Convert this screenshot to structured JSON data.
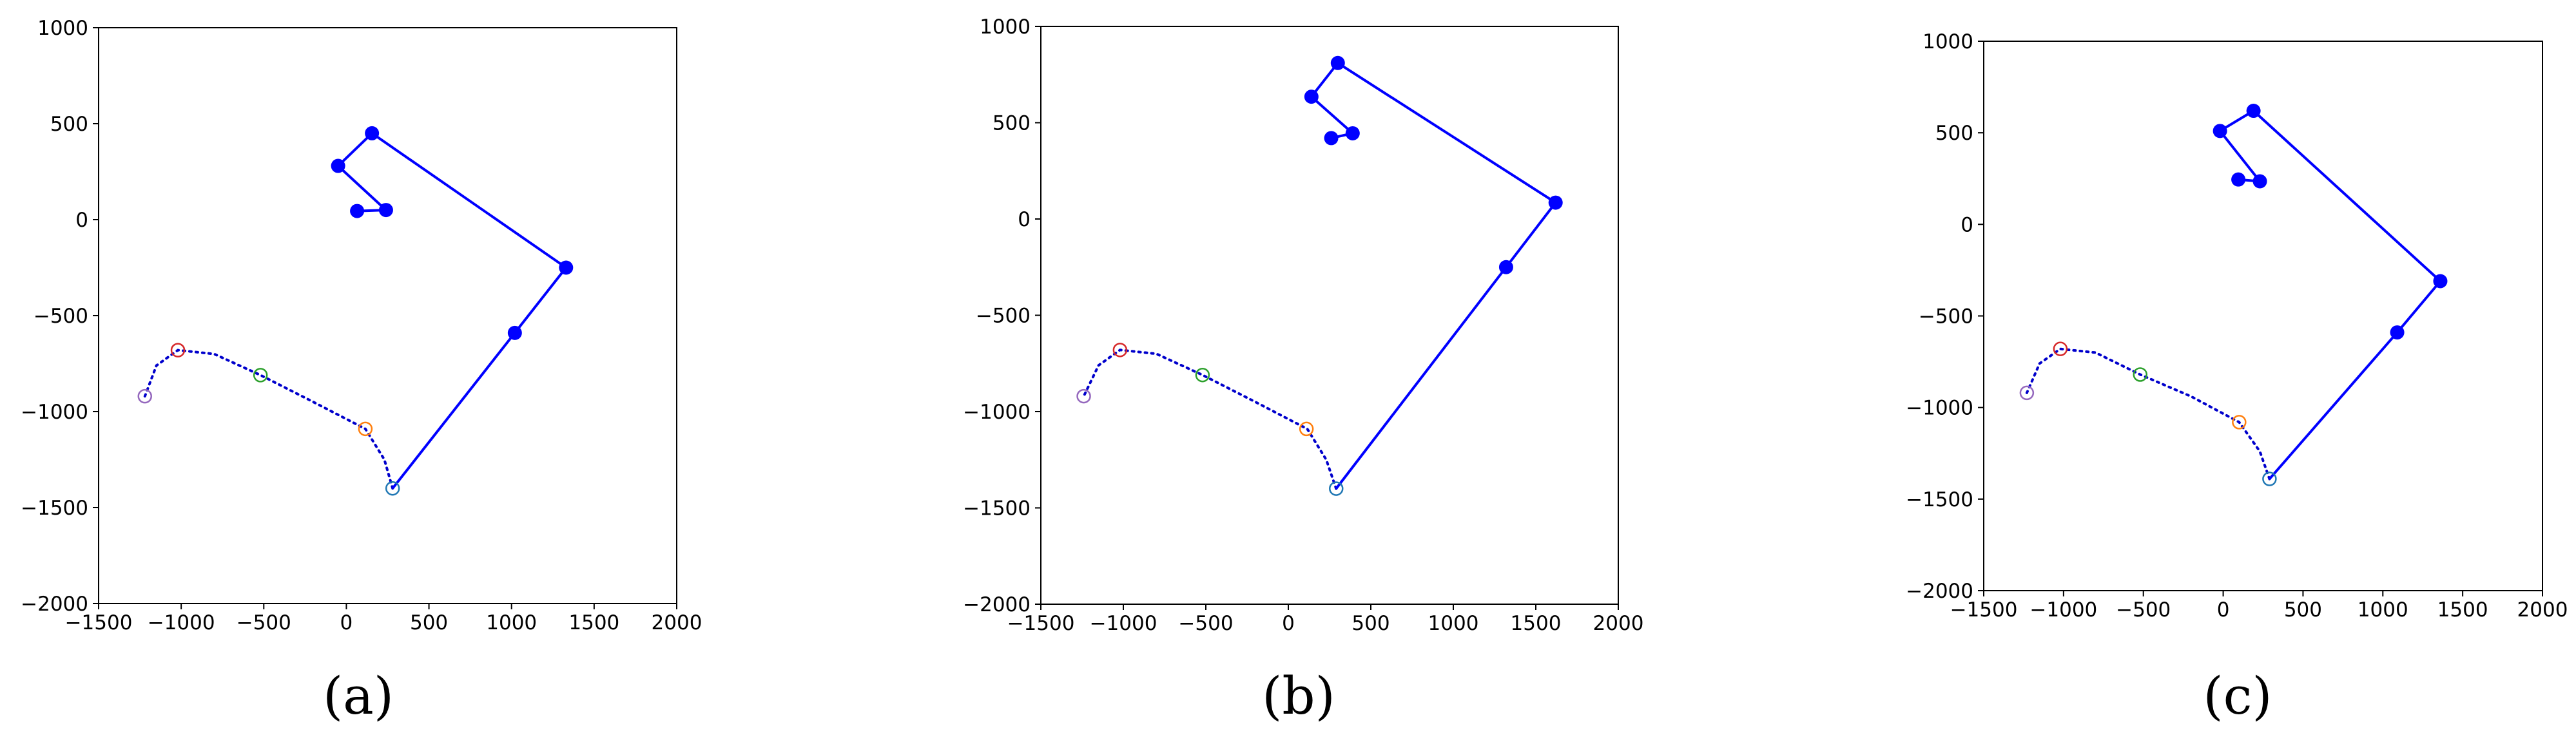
{
  "chart_data": [
    {
      "type": "scatter",
      "caption": "(a)",
      "title": "",
      "xlabel": "",
      "ylabel": "",
      "xlim": [
        -1500,
        2000
      ],
      "ylim": [
        -2000,
        1000
      ],
      "xticks": [
        "−1500",
        "−1000",
        "−500",
        "0",
        "500",
        "1000",
        "1500",
        "2000"
      ],
      "yticks": [
        "−2000",
        "−1500",
        "−1000",
        "−500",
        "0",
        "500",
        "1000"
      ],
      "grid": false,
      "arm_color": "#0000ff",
      "trajectory_color": "#0000cc",
      "arm_joints": [
        [
          280,
          -1400
        ],
        [
          1020,
          -590
        ],
        [
          1330,
          -250
        ],
        [
          155,
          450
        ],
        [
          -50,
          280
        ],
        [
          240,
          50
        ],
        [
          65,
          45
        ]
      ],
      "trajectory": [
        [
          280,
          -1400
        ],
        [
          230,
          -1250
        ],
        [
          115,
          -1090
        ],
        [
          -200,
          -950
        ],
        [
          -520,
          -810
        ],
        [
          -800,
          -700
        ],
        [
          -1020,
          -680
        ],
        [
          -1150,
          -760
        ],
        [
          -1220,
          -920
        ]
      ],
      "markers": [
        {
          "x": 280,
          "y": -1400,
          "color": "#1f77b4"
        },
        {
          "x": 115,
          "y": -1090,
          "color": "#ff7f0e"
        },
        {
          "x": -520,
          "y": -810,
          "color": "#2ca02c"
        },
        {
          "x": -1020,
          "y": -680,
          "color": "#d62728"
        },
        {
          "x": -1220,
          "y": -920,
          "color": "#9467bd"
        }
      ]
    },
    {
      "type": "scatter",
      "caption": "(b)",
      "title": "",
      "xlabel": "",
      "ylabel": "",
      "xlim": [
        -1500,
        2000
      ],
      "ylim": [
        -2000,
        1000
      ],
      "xticks": [
        "−1500",
        "−1000",
        "−500",
        "0",
        "500",
        "1000",
        "1500",
        "2000"
      ],
      "yticks": [
        "−2000",
        "−1500",
        "−1000",
        "−500",
        "0",
        "500",
        "1000"
      ],
      "grid": false,
      "arm_color": "#0000ff",
      "trajectory_color": "#0000cc",
      "arm_joints": [
        [
          290,
          -1400
        ],
        [
          1320,
          -250
        ],
        [
          1620,
          85
        ],
        [
          300,
          810
        ],
        [
          140,
          635
        ],
        [
          390,
          445
        ],
        [
          260,
          420
        ]
      ],
      "trajectory": [
        [
          290,
          -1400
        ],
        [
          230,
          -1250
        ],
        [
          115,
          -1090
        ],
        [
          -200,
          -950
        ],
        [
          -520,
          -810
        ],
        [
          -800,
          -700
        ],
        [
          -1020,
          -680
        ],
        [
          -1150,
          -760
        ],
        [
          -1240,
          -920
        ]
      ],
      "markers": [
        {
          "x": 290,
          "y": -1400,
          "color": "#1f77b4"
        },
        {
          "x": 110,
          "y": -1090,
          "color": "#ff7f0e"
        },
        {
          "x": -520,
          "y": -810,
          "color": "#2ca02c"
        },
        {
          "x": -1020,
          "y": -680,
          "color": "#d62728"
        },
        {
          "x": -1240,
          "y": -920,
          "color": "#9467bd"
        }
      ]
    },
    {
      "type": "scatter",
      "caption": "(c)",
      "title": "",
      "xlabel": "",
      "ylabel": "",
      "xlim": [
        -1500,
        2000
      ],
      "ylim": [
        -2000,
        1000
      ],
      "xticks": [
        "−1500",
        "−1000",
        "−500",
        "0",
        "500",
        "1000",
        "1500",
        "2000"
      ],
      "yticks": [
        "−2000",
        "−1500",
        "−1000",
        "−500",
        "0",
        "500",
        "1000"
      ],
      "grid": false,
      "arm_color": "#0000ff",
      "trajectory_color": "#0000cc",
      "arm_joints": [
        [
          290,
          -1390
        ],
        [
          1090,
          -590
        ],
        [
          1360,
          -310
        ],
        [
          190,
          620
        ],
        [
          -20,
          510
        ],
        [
          230,
          235
        ],
        [
          95,
          245
        ]
      ],
      "trajectory": [
        [
          290,
          -1390
        ],
        [
          230,
          -1240
        ],
        [
          100,
          -1080
        ],
        [
          -200,
          -940
        ],
        [
          -520,
          -820
        ],
        [
          -800,
          -700
        ],
        [
          -1020,
          -680
        ],
        [
          -1150,
          -760
        ],
        [
          -1230,
          -920
        ]
      ],
      "markers": [
        {
          "x": 290,
          "y": -1390,
          "color": "#1f77b4"
        },
        {
          "x": 100,
          "y": -1080,
          "color": "#ff7f0e"
        },
        {
          "x": -520,
          "y": -820,
          "color": "#2ca02c"
        },
        {
          "x": -1020,
          "y": -680,
          "color": "#d62728"
        },
        {
          "x": -1230,
          "y": -920,
          "color": "#9467bd"
        }
      ]
    }
  ]
}
